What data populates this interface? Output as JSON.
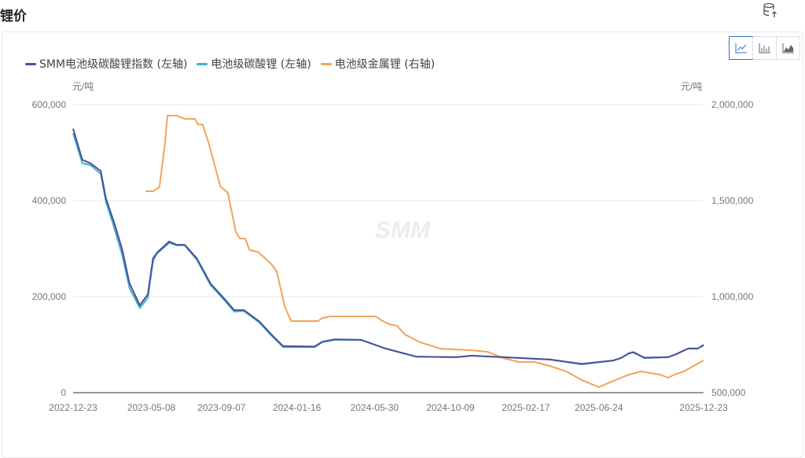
{
  "header": {
    "title": "锂价",
    "export_icon": "database-export-icon"
  },
  "chart_switch": [
    {
      "icon": "line-chart-icon",
      "active": true
    },
    {
      "icon": "bar-chart-icon",
      "active": false
    },
    {
      "icon": "area-chart-icon",
      "active": false
    }
  ],
  "watermark": "SMM",
  "chart_data": {
    "type": "line",
    "legend_placement": "top-left",
    "grid": "horizontal",
    "x_ticks": [
      "2022-12-23",
      "2023-05-08",
      "2023-09-07",
      "2024-01-16",
      "2024-05-30",
      "2024-10-09",
      "2025-02-17",
      "2025-06-24",
      "2025-12-23"
    ],
    "xlim": [
      "2022-12-23",
      "2025-12-23"
    ],
    "y_left": {
      "unit": "元/吨",
      "ylim": [
        0,
        600000
      ],
      "ticks": [
        "0",
        "200,000",
        "400,000",
        "600,000"
      ]
    },
    "y_right": {
      "unit": "元/吨",
      "ylim": [
        500000,
        2000000
      ],
      "ticks": [
        "500,000",
        "1,000,000",
        "1,500,000",
        "2,000,000"
      ]
    },
    "series": [
      {
        "name": "SMM电池级碳酸锂指数 (左轴)",
        "axis": "left",
        "color": "#4a4f9a",
        "points": [
          [
            "2022-12-23",
            550000
          ],
          [
            "2023-01-08",
            485000
          ],
          [
            "2023-01-22",
            478000
          ],
          [
            "2023-02-09",
            462000
          ],
          [
            "2023-02-18",
            405000
          ],
          [
            "2023-03-04",
            355000
          ],
          [
            "2023-03-18",
            300000
          ],
          [
            "2023-03-31",
            228000
          ],
          [
            "2023-04-18",
            182000
          ],
          [
            "2023-05-02",
            205000
          ],
          [
            "2023-05-11",
            280000
          ],
          [
            "2023-05-18",
            292000
          ],
          [
            "2023-06-08",
            315000
          ],
          [
            "2023-06-21",
            308000
          ],
          [
            "2023-07-05",
            308000
          ],
          [
            "2023-07-26",
            280000
          ],
          [
            "2023-08-19",
            227000
          ],
          [
            "2023-09-11",
            197000
          ],
          [
            "2023-09-29",
            172000
          ],
          [
            "2023-10-16",
            172000
          ],
          [
            "2023-11-12",
            148000
          ],
          [
            "2023-12-02",
            122000
          ],
          [
            "2023-12-23",
            97000
          ],
          [
            "2024-02-16",
            96000
          ],
          [
            "2024-02-29",
            106000
          ],
          [
            "2024-03-21",
            111000
          ],
          [
            "2024-05-07",
            110000
          ],
          [
            "2024-06-18",
            92000
          ],
          [
            "2024-08-11",
            75000
          ],
          [
            "2024-10-19",
            74000
          ],
          [
            "2024-11-15",
            77000
          ],
          [
            "2025-01-09",
            74000
          ],
          [
            "2025-03-31",
            69000
          ],
          [
            "2025-05-25",
            60000
          ],
          [
            "2025-07-19",
            67000
          ],
          [
            "2025-08-01",
            72000
          ],
          [
            "2025-08-15",
            82000
          ],
          [
            "2025-08-23",
            84000
          ],
          [
            "2025-09-11",
            73000
          ],
          [
            "2025-10-22",
            74000
          ],
          [
            "2025-11-05",
            80000
          ],
          [
            "2025-11-26",
            92000
          ],
          [
            "2025-12-13",
            92000
          ],
          [
            "2025-12-23",
            99000
          ]
        ]
      },
      {
        "name": "电池级碳酸锂 (左轴)",
        "axis": "left",
        "color": "#3fb1cf",
        "points": [
          [
            "2022-12-23",
            540000
          ],
          [
            "2023-01-08",
            478000
          ],
          [
            "2023-01-22",
            474000
          ],
          [
            "2023-02-09",
            456000
          ],
          [
            "2023-02-18",
            398000
          ],
          [
            "2023-03-04",
            345000
          ],
          [
            "2023-03-18",
            288000
          ],
          [
            "2023-03-31",
            218000
          ],
          [
            "2023-04-18",
            176000
          ],
          [
            "2023-05-02",
            198000
          ],
          [
            "2023-05-11",
            275000
          ],
          [
            "2023-05-18",
            290000
          ],
          [
            "2023-06-08",
            312000
          ],
          [
            "2023-06-21",
            307000
          ],
          [
            "2023-07-05",
            307000
          ],
          [
            "2023-07-26",
            277000
          ],
          [
            "2023-08-19",
            224000
          ],
          [
            "2023-09-11",
            194000
          ],
          [
            "2023-09-29",
            169000
          ],
          [
            "2023-10-16",
            170000
          ],
          [
            "2023-11-12",
            146000
          ],
          [
            "2023-12-02",
            120000
          ],
          [
            "2023-12-23",
            95000
          ],
          [
            "2024-02-16",
            95000
          ],
          [
            "2024-02-29",
            105000
          ],
          [
            "2024-03-21",
            110000
          ],
          [
            "2024-05-07",
            110000
          ],
          [
            "2024-06-18",
            92000
          ],
          [
            "2024-08-11",
            75000
          ],
          [
            "2024-10-19",
            74000
          ],
          [
            "2024-11-15",
            77000
          ],
          [
            "2025-01-09",
            74000
          ],
          [
            "2025-03-31",
            69000
          ],
          [
            "2025-05-25",
            59000
          ],
          [
            "2025-07-19",
            67000
          ],
          [
            "2025-08-01",
            72000
          ],
          [
            "2025-08-15",
            82000
          ],
          [
            "2025-08-23",
            85000
          ],
          [
            "2025-09-11",
            72000
          ],
          [
            "2025-10-22",
            74000
          ],
          [
            "2025-11-05",
            80000
          ],
          [
            "2025-11-26",
            92000
          ],
          [
            "2025-12-13",
            92000
          ],
          [
            "2025-12-23",
            100000
          ]
        ]
      },
      {
        "name": "电池级金属锂 (右轴)",
        "axis": "right",
        "color": "#f0a35a",
        "points": [
          [
            "2023-04-28",
            1549000
          ],
          [
            "2023-05-11",
            1549000
          ],
          [
            "2023-05-22",
            1570000
          ],
          [
            "2023-06-01",
            1807000
          ],
          [
            "2023-06-05",
            1943000
          ],
          [
            "2023-06-21",
            1943000
          ],
          [
            "2023-07-05",
            1926000
          ],
          [
            "2023-07-23",
            1926000
          ],
          [
            "2023-07-28",
            1897000
          ],
          [
            "2023-08-05",
            1897000
          ],
          [
            "2023-08-15",
            1807000
          ],
          [
            "2023-09-05",
            1574000
          ],
          [
            "2023-09-18",
            1541000
          ],
          [
            "2023-10-02",
            1336000
          ],
          [
            "2023-10-09",
            1303000
          ],
          [
            "2023-10-18",
            1303000
          ],
          [
            "2023-10-26",
            1242000
          ],
          [
            "2023-11-09",
            1234000
          ],
          [
            "2023-12-02",
            1172000
          ],
          [
            "2023-12-12",
            1131000
          ],
          [
            "2023-12-26",
            947000
          ],
          [
            "2024-01-06",
            873000
          ],
          [
            "2024-02-22",
            873000
          ],
          [
            "2024-02-29",
            889000
          ],
          [
            "2024-03-14",
            897000
          ],
          [
            "2024-06-01",
            897000
          ],
          [
            "2024-06-11",
            877000
          ],
          [
            "2024-06-24",
            857000
          ],
          [
            "2024-07-08",
            848000
          ],
          [
            "2024-07-22",
            803000
          ],
          [
            "2024-08-18",
            762000
          ],
          [
            "2024-09-21",
            729000
          ],
          [
            "2024-11-15",
            721000
          ],
          [
            "2024-12-12",
            713000
          ],
          [
            "2025-01-09",
            680000
          ],
          [
            "2025-02-05",
            660000
          ],
          [
            "2025-03-04",
            660000
          ],
          [
            "2025-03-31",
            639000
          ],
          [
            "2025-04-28",
            611000
          ],
          [
            "2025-05-25",
            566000
          ],
          [
            "2025-06-24",
            529000
          ],
          [
            "2025-07-26",
            570000
          ],
          [
            "2025-08-15",
            594000
          ],
          [
            "2025-09-05",
            611000
          ],
          [
            "2025-10-09",
            594000
          ],
          [
            "2025-10-22",
            578000
          ],
          [
            "2025-11-02",
            594000
          ],
          [
            "2025-11-19",
            611000
          ],
          [
            "2025-12-23",
            668000
          ]
        ]
      }
    ]
  }
}
